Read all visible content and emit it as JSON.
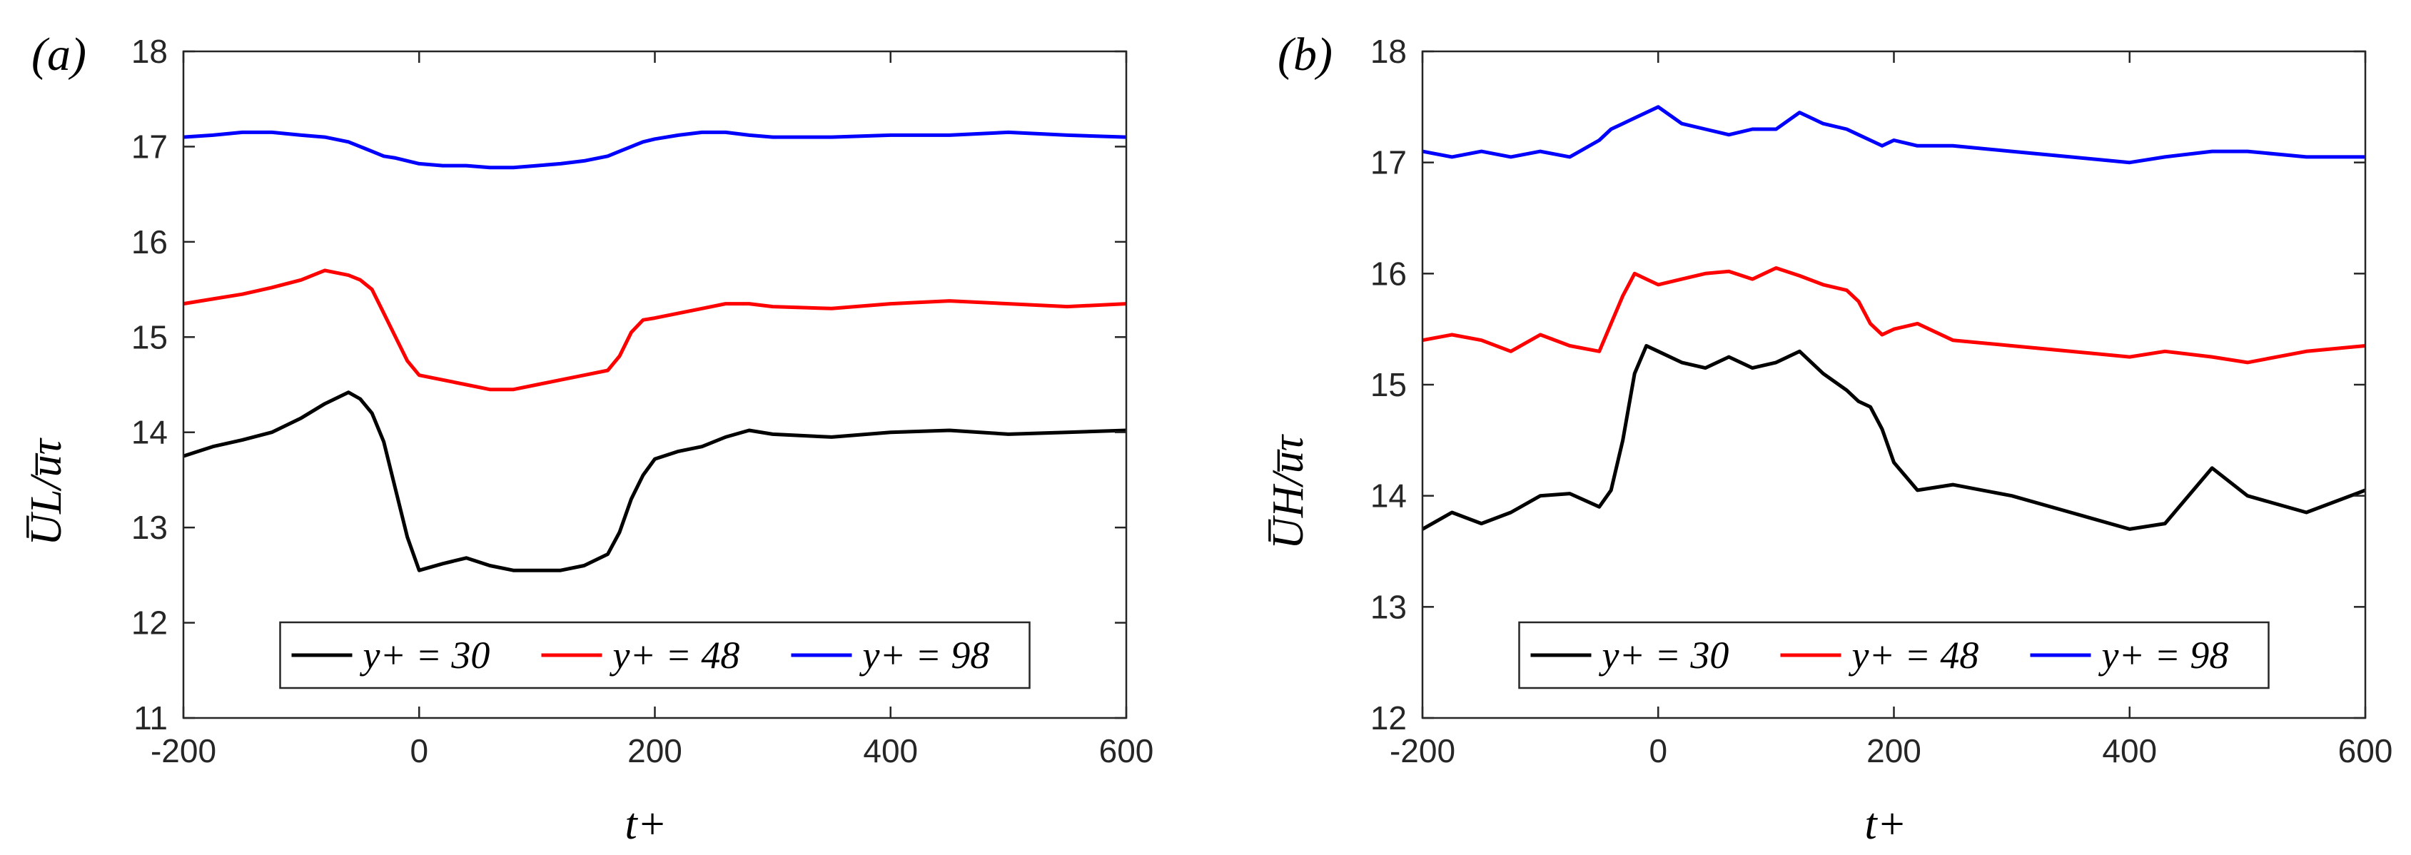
{
  "panels": [
    {
      "label": "(a)",
      "xlabel": "t+",
      "ylabel": "U̅L/u̅τ",
      "legend": [
        "y+ = 30",
        "y+ = 48",
        "y+ = 98"
      ]
    },
    {
      "label": "(b)",
      "xlabel": "t+",
      "ylabel": "U̅H/u̅τ",
      "legend": [
        "y+ = 30",
        "y+ = 48",
        "y+ = 98"
      ]
    }
  ],
  "chart_data": [
    {
      "type": "line",
      "title": "(a)",
      "xlabel": "t+",
      "ylabel": "U̅L/u̅τ",
      "xlim": [
        -200,
        600
      ],
      "ylim": [
        11,
        18
      ],
      "xticks": [
        -200,
        0,
        200,
        400,
        600
      ],
      "yticks": [
        11,
        12,
        13,
        14,
        15,
        16,
        17,
        18
      ],
      "legend_position": "bottom-center",
      "grid": false,
      "x": [
        -200,
        -175,
        -150,
        -125,
        -100,
        -80,
        -60,
        -50,
        -40,
        -30,
        -20,
        -10,
        0,
        20,
        40,
        60,
        80,
        100,
        120,
        140,
        160,
        170,
        180,
        190,
        200,
        220,
        240,
        260,
        280,
        300,
        350,
        400,
        450,
        500,
        550,
        600
      ],
      "series": [
        {
          "name": "y+ = 30",
          "color": "#000000",
          "values": [
            13.75,
            13.85,
            13.92,
            14.0,
            14.15,
            14.3,
            14.42,
            14.35,
            14.2,
            13.9,
            13.4,
            12.9,
            12.55,
            12.62,
            12.68,
            12.6,
            12.55,
            12.55,
            12.55,
            12.6,
            12.72,
            12.95,
            13.3,
            13.55,
            13.72,
            13.8,
            13.85,
            13.95,
            14.02,
            13.98,
            13.95,
            14.0,
            14.02,
            13.98,
            14.0,
            14.02
          ]
        },
        {
          "name": "y+ = 48",
          "color": "#ff0000",
          "values": [
            15.35,
            15.4,
            15.45,
            15.52,
            15.6,
            15.7,
            15.65,
            15.6,
            15.5,
            15.25,
            15.0,
            14.75,
            14.6,
            14.55,
            14.5,
            14.45,
            14.45,
            14.5,
            14.55,
            14.6,
            14.65,
            14.8,
            15.05,
            15.18,
            15.2,
            15.25,
            15.3,
            15.35,
            15.35,
            15.32,
            15.3,
            15.35,
            15.38,
            15.35,
            15.32,
            15.35
          ]
        },
        {
          "name": "y+ = 98",
          "color": "#0000ff",
          "values": [
            17.1,
            17.12,
            17.15,
            17.15,
            17.12,
            17.1,
            17.05,
            17.0,
            16.95,
            16.9,
            16.88,
            16.85,
            16.82,
            16.8,
            16.8,
            16.78,
            16.78,
            16.8,
            16.82,
            16.85,
            16.9,
            16.95,
            17.0,
            17.05,
            17.08,
            17.12,
            17.15,
            17.15,
            17.12,
            17.1,
            17.1,
            17.12,
            17.12,
            17.15,
            17.12,
            17.1
          ]
        }
      ]
    },
    {
      "type": "line",
      "title": "(b)",
      "xlabel": "t+",
      "ylabel": "U̅H/u̅τ",
      "xlim": [
        -200,
        600
      ],
      "ylim": [
        12,
        18
      ],
      "xticks": [
        -200,
        0,
        200,
        400,
        600
      ],
      "yticks": [
        12,
        13,
        14,
        15,
        16,
        17,
        18
      ],
      "legend_position": "bottom-center",
      "grid": false,
      "x": [
        -200,
        -175,
        -150,
        -125,
        -100,
        -75,
        -50,
        -40,
        -30,
        -20,
        -10,
        0,
        20,
        40,
        60,
        80,
        100,
        120,
        140,
        160,
        170,
        180,
        190,
        200,
        220,
        250,
        300,
        350,
        400,
        430,
        470,
        500,
        550,
        600
      ],
      "series": [
        {
          "name": "y+ = 30",
          "color": "#000000",
          "values": [
            13.7,
            13.85,
            13.75,
            13.85,
            14.0,
            14.02,
            13.9,
            14.05,
            14.5,
            15.1,
            15.35,
            15.3,
            15.2,
            15.15,
            15.25,
            15.15,
            15.2,
            15.3,
            15.1,
            14.95,
            14.85,
            14.8,
            14.6,
            14.3,
            14.05,
            14.1,
            14.0,
            13.85,
            13.7,
            13.75,
            14.25,
            14.0,
            13.85,
            14.05
          ]
        },
        {
          "name": "y+ = 48",
          "color": "#ff0000",
          "values": [
            15.4,
            15.45,
            15.4,
            15.3,
            15.45,
            15.35,
            15.3,
            15.55,
            15.8,
            16.0,
            15.95,
            15.9,
            15.95,
            16.0,
            16.02,
            15.95,
            16.05,
            15.98,
            15.9,
            15.85,
            15.75,
            15.55,
            15.45,
            15.5,
            15.55,
            15.4,
            15.35,
            15.3,
            15.25,
            15.3,
            15.25,
            15.2,
            15.3,
            15.35
          ]
        },
        {
          "name": "y+ = 98",
          "color": "#0000ff",
          "values": [
            17.1,
            17.05,
            17.1,
            17.05,
            17.1,
            17.05,
            17.2,
            17.3,
            17.35,
            17.4,
            17.45,
            17.5,
            17.35,
            17.3,
            17.25,
            17.3,
            17.3,
            17.45,
            17.35,
            17.3,
            17.25,
            17.2,
            17.15,
            17.2,
            17.15,
            17.15,
            17.1,
            17.05,
            17.0,
            17.05,
            17.1,
            17.1,
            17.05,
            17.05
          ]
        }
      ]
    }
  ]
}
